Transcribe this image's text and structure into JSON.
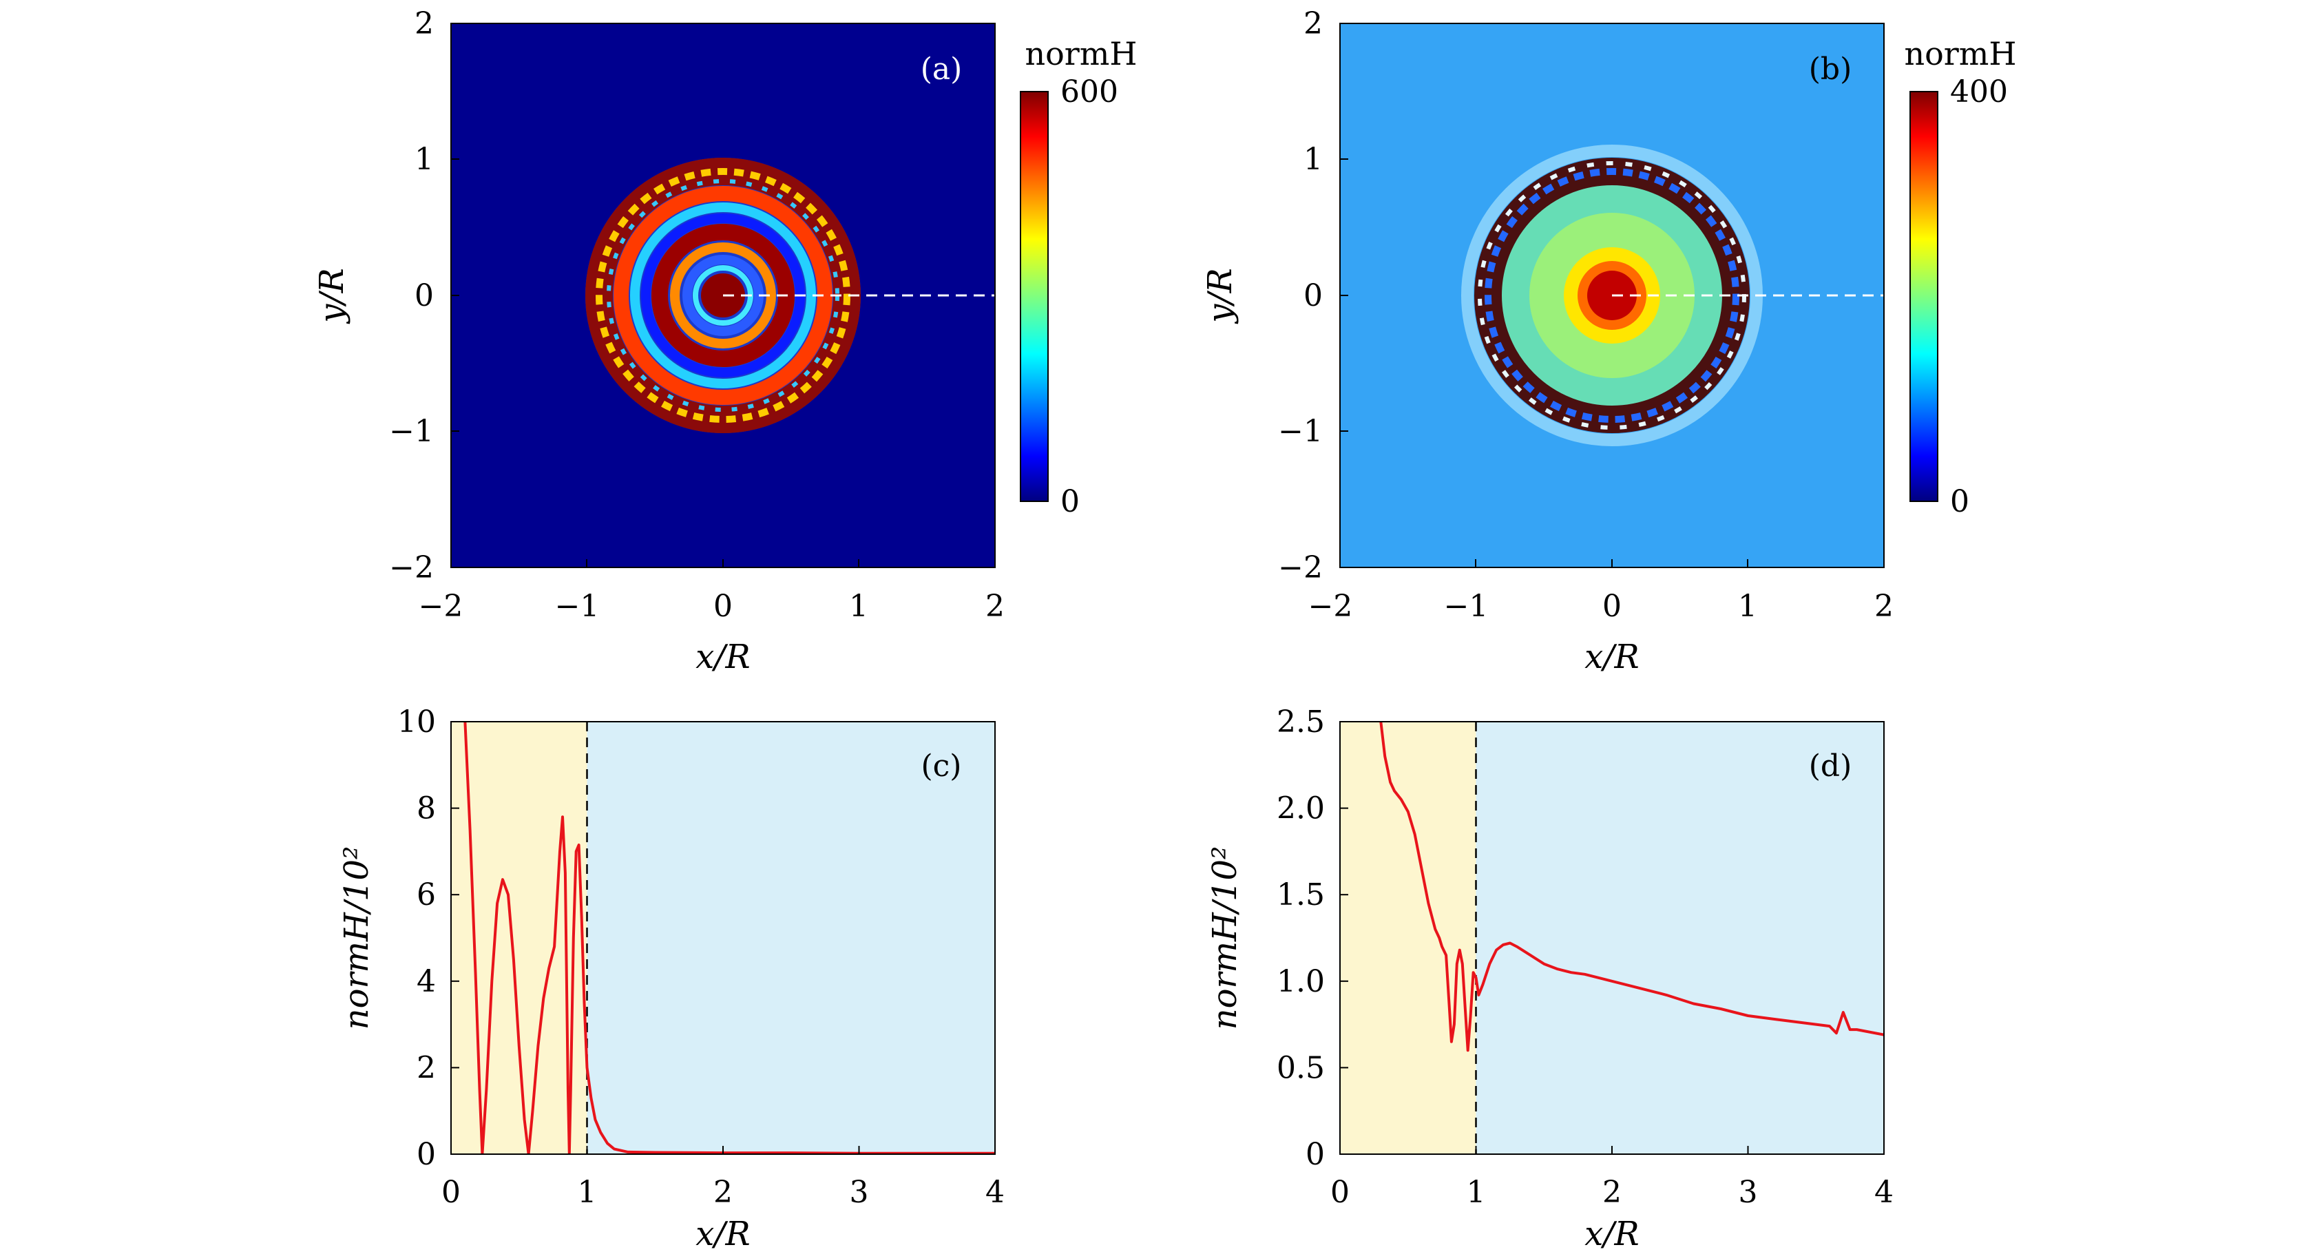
{
  "chart_data": [
    {
      "id": "a",
      "type": "heatmap",
      "panel_label": "(a)",
      "xlabel": "x/R",
      "ylabel": "y/R",
      "xlim": [
        -2,
        2
      ],
      "ylim": [
        -2,
        2
      ],
      "x_ticks": [
        "−2",
        "−1",
        "0",
        "1",
        "2"
      ],
      "y_ticks": [
        "−2",
        "−1",
        "0",
        "1",
        "2"
      ],
      "colorbar": {
        "label": "normH",
        "min": 0,
        "max": 600,
        "ticks": [
          "0",
          "600"
        ]
      },
      "field_description": "concentric rings with bright core; dense ring structure between r=0.8 and r=1; dark background outside",
      "background_level": 0.0,
      "dashed_line": {
        "from": [
          0,
          0
        ],
        "to": [
          2,
          0
        ]
      }
    },
    {
      "id": "b",
      "type": "heatmap",
      "panel_label": "(b)",
      "xlabel": "x/R",
      "ylabel": "y/R",
      "xlim": [
        -2,
        2
      ],
      "ylim": [
        -2,
        2
      ],
      "x_ticks": [
        "−2",
        "−1",
        "0",
        "1",
        "2"
      ],
      "y_ticks": [
        "−2",
        "−1",
        "0",
        "1",
        "2"
      ],
      "colorbar": {
        "label": "normH",
        "min": 0,
        "max": 400,
        "ticks": [
          "0",
          "400"
        ]
      },
      "field_description": "red core at center fading to light blue; dense ring between r=0.8 and r=1; light blue background",
      "background_level": 0.3,
      "dashed_line": {
        "from": [
          0,
          0
        ],
        "to": [
          2,
          0
        ]
      }
    },
    {
      "id": "c",
      "type": "line",
      "panel_label": "(c)",
      "xlabel": "x/R",
      "ylabel": "normH/10²",
      "xlim": [
        0,
        4
      ],
      "ylim": [
        0,
        10
      ],
      "x_ticks": [
        0,
        1,
        2,
        3,
        4
      ],
      "y_ticks": [
        0,
        2,
        4,
        6,
        8,
        10
      ],
      "regions": [
        {
          "from": 0,
          "to": 1,
          "color": "#fdf6cf"
        },
        {
          "from": 1,
          "to": 4,
          "color": "#d8eff9"
        }
      ],
      "vline": 1,
      "series": [
        {
          "name": "normH",
          "color": "#e8141b",
          "x": [
            0.1,
            0.14,
            0.18,
            0.21,
            0.23,
            0.26,
            0.3,
            0.34,
            0.38,
            0.42,
            0.46,
            0.5,
            0.54,
            0.57,
            0.6,
            0.64,
            0.68,
            0.72,
            0.76,
            0.8,
            0.82,
            0.84,
            0.86,
            0.87,
            0.88,
            0.9,
            0.92,
            0.94,
            0.96,
            0.98,
            1.0,
            1.03,
            1.06,
            1.1,
            1.15,
            1.2,
            1.3,
            1.5,
            2.0,
            2.5,
            3.0,
            3.5,
            4.0
          ],
          "y": [
            10.2,
            7.5,
            4.2,
            1.5,
            0.0,
            1.5,
            4.0,
            5.8,
            6.35,
            6.0,
            4.5,
            2.5,
            0.8,
            0.0,
            1.0,
            2.5,
            3.6,
            4.3,
            4.8,
            7.0,
            7.8,
            6.5,
            1.5,
            0.0,
            1.5,
            5.0,
            7.0,
            7.15,
            5.5,
            3.5,
            2.0,
            1.3,
            0.8,
            0.5,
            0.25,
            0.12,
            0.05,
            0.04,
            0.03,
            0.03,
            0.02,
            0.02,
            0.02
          ]
        }
      ]
    },
    {
      "id": "d",
      "type": "line",
      "panel_label": "(d)",
      "xlabel": "x/R",
      "ylabel": "normH/10²",
      "xlim": [
        0,
        4
      ],
      "ylim": [
        0,
        2.5
      ],
      "x_ticks": [
        0,
        1,
        2,
        3,
        4
      ],
      "y_ticks": [
        "0",
        "0.5",
        "1.0",
        "1.5",
        "2.0",
        "2.5"
      ],
      "regions": [
        {
          "from": 0,
          "to": 1,
          "color": "#fdf6cf"
        },
        {
          "from": 1,
          "to": 4,
          "color": "#d8eff9"
        }
      ],
      "vline": 1,
      "series": [
        {
          "name": "normH",
          "color": "#e8141b",
          "x": [
            0.3,
            0.33,
            0.37,
            0.4,
            0.45,
            0.5,
            0.55,
            0.6,
            0.65,
            0.7,
            0.73,
            0.75,
            0.78,
            0.8,
            0.82,
            0.84,
            0.86,
            0.88,
            0.9,
            0.92,
            0.94,
            0.96,
            0.98,
            1.0,
            1.02,
            1.05,
            1.1,
            1.15,
            1.2,
            1.25,
            1.3,
            1.4,
            1.5,
            1.6,
            1.7,
            1.8,
            1.9,
            2.0,
            2.2,
            2.4,
            2.6,
            2.8,
            3.0,
            3.2,
            3.4,
            3.6,
            3.65,
            3.7,
            3.75,
            3.8,
            4.0
          ],
          "y": [
            2.5,
            2.3,
            2.15,
            2.1,
            2.05,
            1.98,
            1.85,
            1.65,
            1.45,
            1.3,
            1.25,
            1.2,
            1.15,
            0.9,
            0.65,
            0.75,
            1.1,
            1.18,
            1.1,
            0.85,
            0.6,
            0.8,
            1.05,
            1.02,
            0.92,
            0.98,
            1.1,
            1.18,
            1.21,
            1.22,
            1.2,
            1.15,
            1.1,
            1.07,
            1.05,
            1.04,
            1.02,
            1.0,
            0.96,
            0.92,
            0.87,
            0.84,
            0.8,
            0.78,
            0.76,
            0.74,
            0.7,
            0.82,
            0.72,
            0.72,
            0.69
          ]
        }
      ]
    }
  ]
}
